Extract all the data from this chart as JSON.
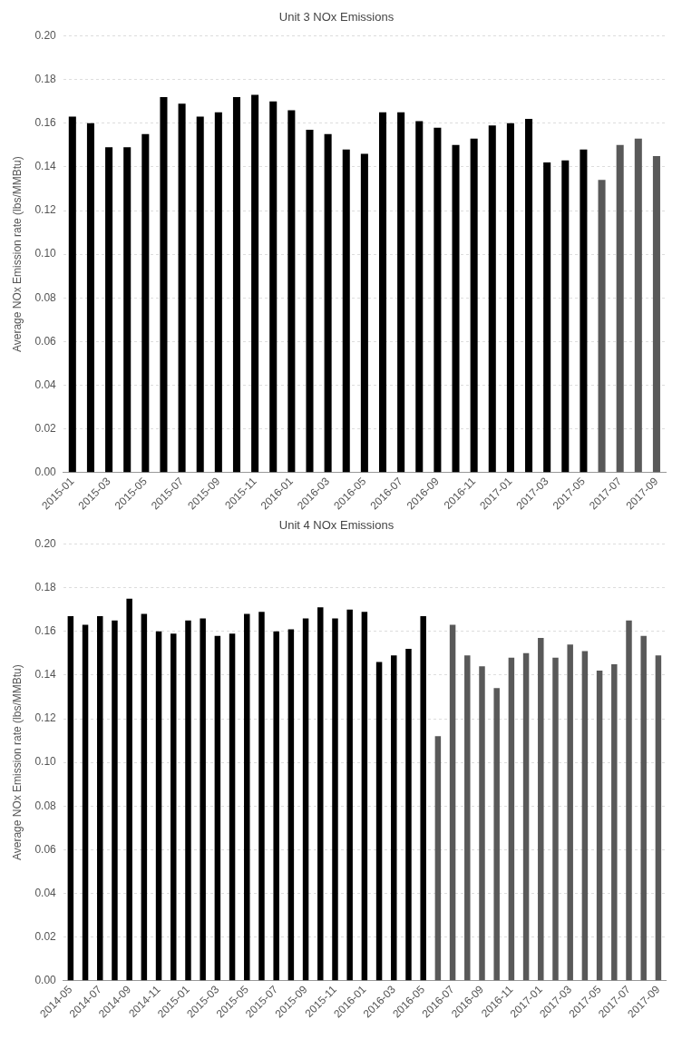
{
  "chart_data": [
    {
      "type": "bar",
      "title": "Unit 3 NOx Emissions",
      "ylabel": "Average NOx Emission rate (lbs/MMBtu)",
      "categories": [
        "2015-01",
        null,
        "2015-03",
        null,
        "2015-05",
        null,
        "2015-07",
        null,
        "2015-09",
        null,
        "2015-11",
        null,
        "2016-01",
        null,
        "2016-03",
        null,
        "2016-05",
        null,
        "2016-07",
        null,
        "2016-09",
        null,
        "2016-11",
        null,
        "2017-01",
        null,
        "2017-03",
        null,
        "2017-05",
        null,
        "2017-07",
        null,
        "2017-09"
      ],
      "values": [
        0.163,
        0.16,
        0.149,
        0.149,
        0.155,
        0.172,
        0.169,
        0.163,
        0.165,
        0.172,
        0.173,
        0.17,
        0.166,
        0.157,
        0.155,
        0.148,
        0.146,
        0.165,
        0.165,
        0.161,
        0.158,
        0.15,
        0.153,
        0.159,
        0.16,
        0.162,
        0.142,
        0.143,
        0.148,
        0.134,
        0.15,
        0.153,
        0.145
      ],
      "colors": [
        "#000000",
        "#000000",
        "#000000",
        "#000000",
        "#000000",
        "#000000",
        "#000000",
        "#000000",
        "#000000",
        "#000000",
        "#000000",
        "#000000",
        "#000000",
        "#000000",
        "#000000",
        "#000000",
        "#000000",
        "#000000",
        "#000000",
        "#000000",
        "#000000",
        "#000000",
        "#000000",
        "#000000",
        "#000000",
        "#000000",
        "#000000",
        "#000000",
        "#000000",
        "#595959",
        "#595959",
        "#595959",
        "#595959"
      ],
      "ylim": [
        0,
        0.2
      ],
      "yticks": [
        {
          "value": 0,
          "label": "0.00"
        },
        {
          "value": 0.02,
          "label": "0.02"
        },
        {
          "value": 0.04,
          "label": "0.04"
        },
        {
          "value": 0.06,
          "label": "0.06"
        },
        {
          "value": 0.08,
          "label": "0.08"
        },
        {
          "value": 0.1,
          "label": "0.10"
        },
        {
          "value": 0.12,
          "label": "0.12"
        },
        {
          "value": 0.14,
          "label": "0.14"
        },
        {
          "value": 0.16,
          "label": "0.16"
        },
        {
          "value": 0.18,
          "label": "0.18"
        },
        {
          "value": 0.2,
          "label": "0.20"
        }
      ],
      "grid": "y",
      "legend": false
    },
    {
      "type": "bar",
      "title": "Unit 4 NOx Emissions",
      "ylabel": "Average NOx Emission rate (lbs/MMBtu)",
      "categories": [
        "2014-05",
        null,
        "2014-07",
        null,
        "2014-09",
        null,
        "2014-11",
        null,
        "2015-01",
        null,
        "2015-03",
        null,
        "2015-05",
        null,
        "2015-07",
        null,
        "2015-09",
        null,
        "2015-11",
        null,
        "2016-01",
        null,
        "2016-03",
        null,
        "2016-05",
        null,
        "2016-07",
        null,
        "2016-09",
        null,
        "2016-11",
        null,
        "2017-01",
        null,
        "2017-03",
        null,
        "2017-05",
        null,
        "2017-07",
        null,
        "2017-09"
      ],
      "values": [
        0.167,
        0.163,
        0.167,
        0.165,
        0.175,
        0.168,
        0.16,
        0.159,
        0.165,
        0.166,
        0.158,
        0.159,
        0.168,
        0.169,
        0.16,
        0.161,
        0.166,
        0.171,
        0.166,
        0.17,
        0.169,
        0.146,
        0.149,
        0.152,
        0.167,
        0.112,
        0.163,
        0.149,
        0.144,
        0.134,
        0.148,
        0.15,
        0.157,
        0.148,
        0.154,
        0.151,
        0.142,
        0.145,
        0.165,
        0.158,
        0.149
      ],
      "colors": [
        "#000000",
        "#000000",
        "#000000",
        "#000000",
        "#000000",
        "#000000",
        "#000000",
        "#000000",
        "#000000",
        "#000000",
        "#000000",
        "#000000",
        "#000000",
        "#000000",
        "#000000",
        "#000000",
        "#000000",
        "#000000",
        "#000000",
        "#000000",
        "#000000",
        "#000000",
        "#000000",
        "#000000",
        "#000000",
        "#595959",
        "#595959",
        "#595959",
        "#595959",
        "#595959",
        "#595959",
        "#595959",
        "#595959",
        "#595959",
        "#595959",
        "#595959",
        "#595959",
        "#595959",
        "#595959",
        "#595959",
        "#595959"
      ],
      "ylim": [
        0,
        0.2
      ],
      "yticks": [
        {
          "value": 0,
          "label": "0.00"
        },
        {
          "value": 0.02,
          "label": "0.02"
        },
        {
          "value": 0.04,
          "label": "0.04"
        },
        {
          "value": 0.06,
          "label": "0.06"
        },
        {
          "value": 0.08,
          "label": "0.08"
        },
        {
          "value": 0.1,
          "label": "0.10"
        },
        {
          "value": 0.12,
          "label": "0.12"
        },
        {
          "value": 0.14,
          "label": "0.14"
        },
        {
          "value": 0.16,
          "label": "0.16"
        },
        {
          "value": 0.18,
          "label": "0.18"
        },
        {
          "value": 0.2,
          "label": "0.20"
        }
      ],
      "grid": "y",
      "legend": false
    }
  ]
}
